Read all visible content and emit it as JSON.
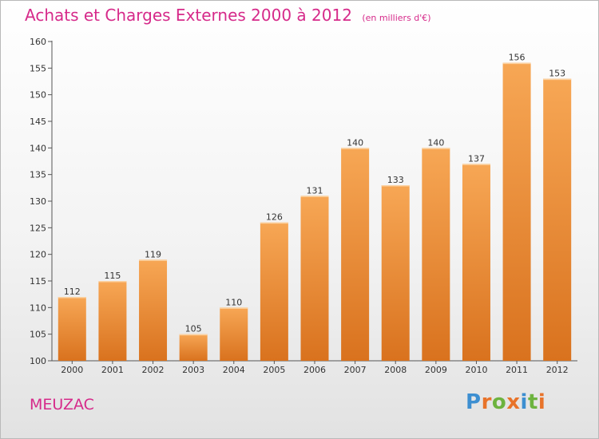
{
  "header": {
    "title": "Achats et Charges Externes 2000 à 2012",
    "subtitle": "(en milliers d'€)"
  },
  "footer": {
    "commune": "MEUZAC",
    "brand": [
      "P",
      "r",
      "o",
      "x",
      "i",
      "t",
      "i"
    ]
  },
  "colors": {
    "title": "#d62a8a",
    "bar_top": "#f7a755",
    "bar_bottom": "#d9721e",
    "brand_letters": [
      "#3d8fd1",
      "#e8732a",
      "#6db33f",
      "#e8732a",
      "#3d8fd1",
      "#6db33f",
      "#e8732a"
    ]
  },
  "chart_data": {
    "type": "bar",
    "categories": [
      "2000",
      "2001",
      "2002",
      "2003",
      "2004",
      "2005",
      "2006",
      "2007",
      "2008",
      "2009",
      "2010",
      "2011",
      "2012"
    ],
    "values": [
      112,
      115,
      119,
      105,
      110,
      126,
      131,
      140,
      133,
      140,
      137,
      156,
      153
    ],
    "value_labels": [
      "112",
      "115",
      "119",
      "105",
      "110",
      "126",
      "131",
      "140",
      "133",
      "140",
      "137",
      "156",
      "153"
    ],
    "ylim": [
      100,
      160
    ],
    "yticks": [
      "100",
      "105",
      "110",
      "115",
      "120",
      "125",
      "130",
      "135",
      "140",
      "145",
      "150",
      "155",
      "160"
    ],
    "grid": false,
    "legend": "none"
  }
}
